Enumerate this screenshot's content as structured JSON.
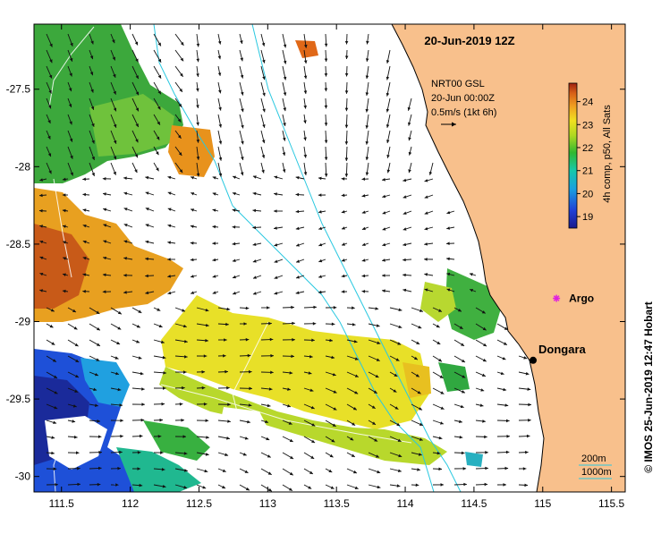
{
  "map": {
    "title": "20-Jun-2019 12Z",
    "x_ticks": [
      "111.5",
      "112",
      "112.5",
      "113",
      "113.5",
      "114",
      "114.5",
      "115",
      "115.5"
    ],
    "y_ticks": [
      "-27.5",
      "-28",
      "-28.5",
      "-29",
      "-29.5",
      "-30"
    ],
    "x_range": [
      111.3,
      115.6
    ],
    "y_range": [
      -27.08,
      -30.1
    ],
    "land_color": "#f8c08c",
    "ocean_color": "#ffffff",
    "coast_color": "#000000",
    "isobath_color": "#29c8e0"
  },
  "velocity_legend": {
    "source": "NRT00 GSL",
    "time": "20-Jun 00:00Z",
    "scale": "0.5m/s (1kt 6h)"
  },
  "colorbar": {
    "label": "4h comp, p50, All Sats",
    "ticks": [
      "19",
      "20",
      "21",
      "22",
      "23",
      "24"
    ],
    "range": [
      18.5,
      24.8
    ]
  },
  "places": [
    {
      "name": "Argo",
      "lon": 115.1,
      "lat": -28.85,
      "marker": "star",
      "color": "#e020e0"
    },
    {
      "name": "Dongara",
      "lon": 114.93,
      "lat": -29.25,
      "marker": "dot",
      "color": "#000000"
    }
  ],
  "isobath_legend": [
    "200m",
    "1000m"
  ],
  "credit": "© IMOS 25-Jun-2019 12:47 Hobart"
}
